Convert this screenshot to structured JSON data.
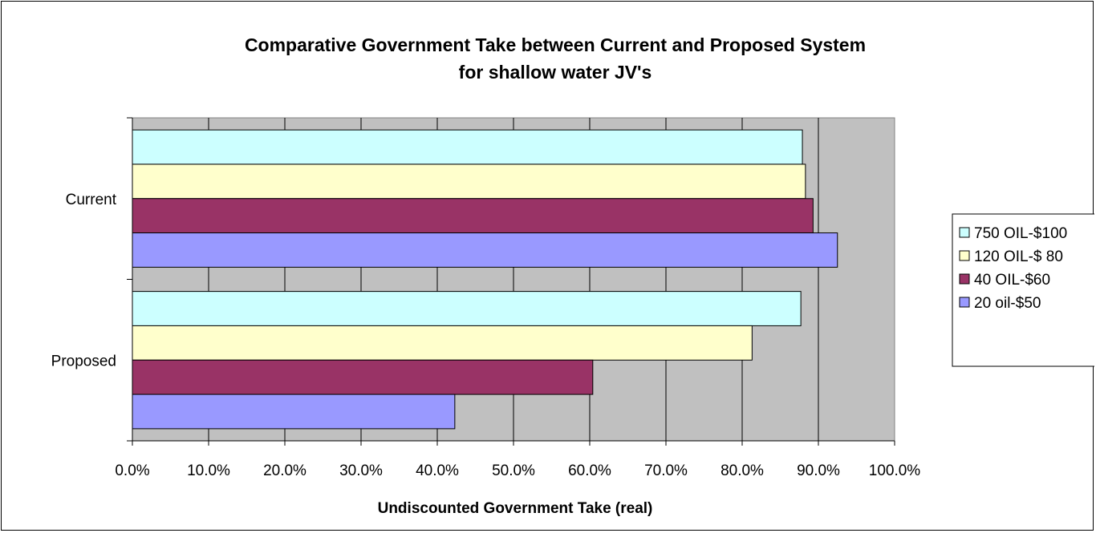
{
  "chart_data": {
    "type": "bar",
    "orientation": "horizontal",
    "title": [
      "Comparative Government Take between Current and Proposed System",
      "for shallow water JV's"
    ],
    "xlabel": "Undiscounted Government Take (real)",
    "ylabel": "",
    "categories": [
      "Current",
      "Proposed"
    ],
    "xlim": [
      0,
      1.0
    ],
    "x_ticks": [
      0,
      0.1,
      0.2,
      0.3,
      0.4,
      0.5,
      0.6,
      0.7,
      0.8,
      0.9,
      1.0
    ],
    "x_tick_labels": [
      "0.0%",
      "10.0%",
      "20.0%",
      "30.0%",
      "40.0%",
      "50.0%",
      "60.0%",
      "70.0%",
      "80.0%",
      "90.0%",
      "100.0%"
    ],
    "grid": true,
    "legend_position": "right",
    "plot_background": "#c0c0c0",
    "series": [
      {
        "name": "750 OIL-$100",
        "color": "#ccffff",
        "values": [
          0.879,
          0.877
        ]
      },
      {
        "name": "120 OIL-$ 80",
        "color": "#ffffcc",
        "values": [
          0.883,
          0.813
        ]
      },
      {
        "name": "40 OIL-$60",
        "color": "#993366",
        "values": [
          0.893,
          0.604
        ]
      },
      {
        "name": "20 oil-$50",
        "color": "#9999ff",
        "values": [
          0.925,
          0.423
        ]
      }
    ]
  }
}
